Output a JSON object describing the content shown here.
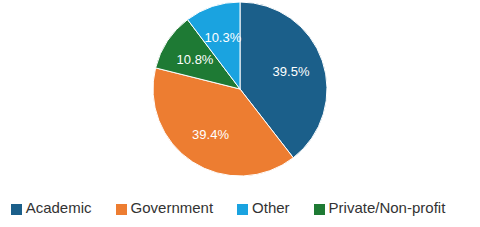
{
  "chart_data": {
    "type": "pie",
    "categories": [
      "Academic",
      "Government",
      "Private/Non-profit",
      "Other"
    ],
    "values": [
      39.5,
      39.4,
      10.8,
      10.3
    ],
    "value_labels": [
      "39.5%",
      "39.4%",
      "10.8%",
      "10.3%"
    ],
    "colors": [
      "#1b5f8a",
      "#ed7d31",
      "#1e7a34",
      "#1aa3e0"
    ],
    "data_labels": true,
    "legend": "bottom"
  }
}
